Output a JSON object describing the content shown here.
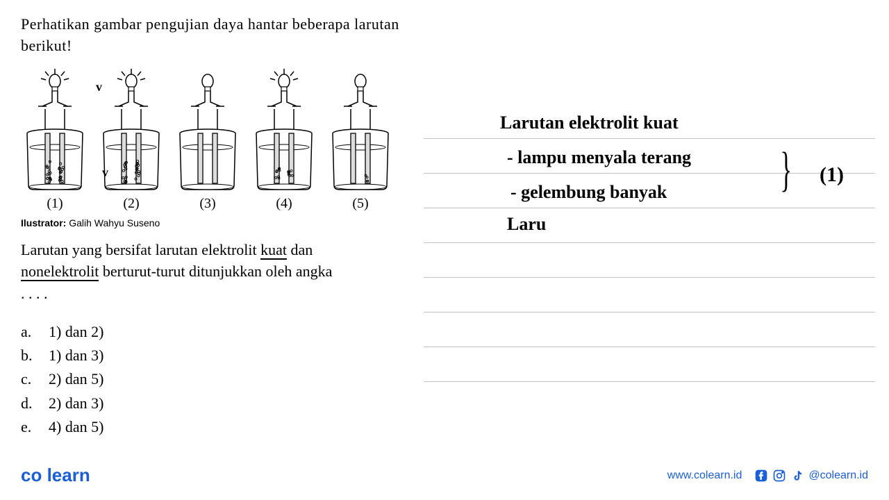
{
  "question": {
    "intro": "Perhatikan gambar pengujian daya hantar beberapa larutan berikut!",
    "illustrator_label": "Ilustrator:",
    "illustrator_name": "Galih Wahyu Suseno",
    "prompt_part1": "Larutan yang bersifat larutan elektrolit ",
    "prompt_kuat": "kuat",
    "prompt_part2": " dan ",
    "prompt_non": "nonelektrolit",
    "prompt_part3": " berturut-turut ditunjukkan oleh angka",
    "dots": ". . . ."
  },
  "beakers": [
    {
      "label": "(1)",
      "bulb_lit": true,
      "bubbles": "many"
    },
    {
      "label": "(2)",
      "bulb_lit": true,
      "bubbles": "many"
    },
    {
      "label": "(3)",
      "bulb_lit": false,
      "bubbles": "none"
    },
    {
      "label": "(4)",
      "bulb_lit": true,
      "bubbles": "some"
    },
    {
      "label": "(5)",
      "bulb_lit": false,
      "bubbles": "few"
    }
  ],
  "options": [
    {
      "letter": "a.",
      "text": "1) dan 2)"
    },
    {
      "letter": "b.",
      "text": "1) dan 3)"
    },
    {
      "letter": "c.",
      "text": "2) dan 5)"
    },
    {
      "letter": "d.",
      "text": "2) dan 3)"
    },
    {
      "letter": "e.",
      "text": "4) dan 5)"
    }
  ],
  "handwriting": {
    "line1": "Larutan elektrolit kuat",
    "line2": "- lampu menyala terang",
    "line3": "- gelembung banyak",
    "marker": "(1)",
    "line4": "Laru"
  },
  "footer": {
    "logo1": "co",
    "logo2": "learn",
    "url": "www.colearn.id",
    "handle": "@colearn.id"
  },
  "colors": {
    "brand": "#1a5fd8",
    "rule": "#bfbfbf",
    "text": "#000000"
  }
}
